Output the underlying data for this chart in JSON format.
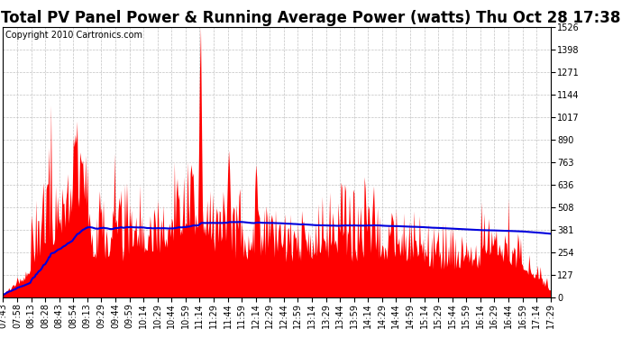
{
  "title": "Total PV Panel Power & Running Average Power (watts) Thu Oct 28 17:38",
  "copyright": "Copyright 2010 Cartronics.com",
  "bg_color": "#ffffff",
  "plot_bg_color": "#ffffff",
  "fill_color": "#ff0000",
  "line_color": "#0000dd",
  "grid_color": "#bbbbbb",
  "ymin": 0.0,
  "ymax": 1525.5,
  "yticks": [
    0.0,
    127.1,
    254.2,
    381.4,
    508.5,
    635.6,
    762.7,
    889.9,
    1017.0,
    1144.1,
    1271.2,
    1398.4,
    1525.5
  ],
  "xtick_labels": [
    "07:43",
    "07:58",
    "08:13",
    "08:28",
    "08:43",
    "08:54",
    "09:13",
    "09:29",
    "09:44",
    "09:59",
    "10:14",
    "10:29",
    "10:44",
    "10:59",
    "11:14",
    "11:29",
    "11:44",
    "11:59",
    "12:14",
    "12:29",
    "12:44",
    "12:59",
    "13:14",
    "13:29",
    "13:44",
    "13:59",
    "14:14",
    "14:29",
    "14:44",
    "14:59",
    "15:14",
    "15:29",
    "15:44",
    "15:59",
    "16:14",
    "16:29",
    "16:44",
    "16:59",
    "17:14",
    "17:29"
  ],
  "title_fontsize": 12,
  "copyright_fontsize": 7,
  "tick_fontsize": 7
}
